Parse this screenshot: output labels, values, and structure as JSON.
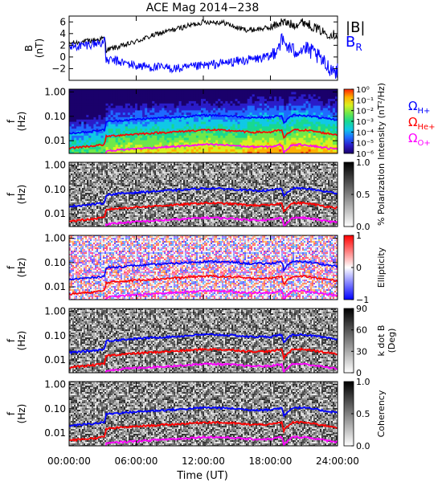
{
  "figure": {
    "title": "ACE Mag 2014−238",
    "xlabel": "Time (UT)",
    "x_ticks": [
      "00:00:00",
      "06:00:00",
      "12:00:00",
      "18:00:00",
      "24:00:00"
    ]
  },
  "chart_data": [
    {
      "type": "line",
      "panel": "magnetic-field",
      "ylabel": [
        "B",
        "(nT)"
      ],
      "ylim": [
        -4,
        7
      ],
      "y_ticks": [
        "6",
        "4",
        "2",
        "0",
        "−2"
      ],
      "x_range_hours": [
        0,
        24
      ],
      "series": [
        {
          "name": "|B|",
          "color": "#000000",
          "x": [
            0,
            2,
            3.2,
            3.3,
            5,
            8,
            10,
            12,
            13,
            14,
            15,
            16,
            18,
            19,
            20,
            21,
            22,
            23,
            24
          ],
          "values": [
            2.3,
            2.8,
            3.2,
            1.2,
            2.0,
            4.0,
            5.0,
            6.0,
            6.0,
            5.8,
            5.0,
            4.6,
            5.0,
            6.0,
            5.5,
            6.0,
            5.0,
            4.0,
            3.8
          ]
        },
        {
          "name": "B_R",
          "color": "#0000ff",
          "x": [
            0,
            2,
            3.2,
            3.3,
            4,
            6,
            8,
            10,
            12,
            14,
            16,
            18,
            19,
            20,
            21,
            22,
            23,
            24
          ],
          "values": [
            1.6,
            2.2,
            2.6,
            -0.6,
            -0.6,
            -1.5,
            -1.8,
            -2.0,
            -1.5,
            -1.0,
            -0.5,
            0.0,
            2.8,
            1.0,
            1.5,
            0.5,
            -1.5,
            -2.5
          ]
        }
      ]
    },
    {
      "type": "heatmap",
      "panel": "intensity",
      "ylabel": [
        "f",
        "(Hz)"
      ],
      "y_ticks": [
        "1.00",
        "0.10",
        "0.01"
      ],
      "colorbar_label": "Intensity (nT²/Hz)",
      "colorbar_ticks": [
        "10⁰",
        "10⁻¹",
        "10⁻²",
        "10⁻³",
        "10⁻⁴",
        "10⁻⁵",
        "10⁻⁶"
      ],
      "legend": [
        "ΩH+",
        "ΩHe+",
        "ΩO+"
      ],
      "legend_colors": [
        "#0000ff",
        "#ff0000",
        "#ff00ff"
      ]
    },
    {
      "type": "heatmap",
      "panel": "polarization",
      "ylabel": [
        "f",
        "(Hz)"
      ],
      "y_ticks": [
        "1.00",
        "0.10",
        "0.01"
      ],
      "colorbar_label": "% Polarization",
      "colorbar_ticks": [
        "1.0",
        "0.5",
        "0.0"
      ]
    },
    {
      "type": "heatmap",
      "panel": "ellipticity",
      "ylabel": [
        "f",
        "(Hz)"
      ],
      "y_ticks": [
        "1.00",
        "0.10",
        "0.01"
      ],
      "colorbar_label": "Ellipticity",
      "colorbar_ticks": [
        "1",
        "0",
        "−1"
      ]
    },
    {
      "type": "heatmap",
      "panel": "k-dot-b",
      "ylabel": [
        "f",
        "(Hz)"
      ],
      "y_ticks": [
        "1.00",
        "0.10",
        "0.01"
      ],
      "colorbar_label": [
        "k dot B",
        "(Deg)"
      ],
      "colorbar_ticks": [
        "90",
        "60",
        "30",
        "0"
      ]
    },
    {
      "type": "heatmap",
      "panel": "coherency",
      "ylabel": [
        "f",
        "(Hz)"
      ],
      "y_ticks": [
        "1.00",
        "0.10",
        "0.01"
      ],
      "colorbar_label": "Coherency",
      "colorbar_ticks": [
        "1.0",
        "0.5",
        "0.0"
      ]
    }
  ],
  "gyro_lines": {
    "x_hours": [
      0,
      2,
      3.2,
      3.3,
      5,
      8,
      10,
      12,
      13,
      15,
      16,
      18,
      18.5,
      19,
      19.2,
      20,
      21,
      22,
      23,
      24
    ],
    "he_ratio": 0.25,
    "o_ratio": 0.0625,
    "hplus_freq_hz": [
      0.02,
      0.024,
      0.028,
      0.06,
      0.07,
      0.085,
      0.095,
      0.11,
      0.11,
      0.1,
      0.09,
      0.09,
      0.1,
      0.11,
      0.05,
      0.11,
      0.11,
      0.095,
      0.08,
      0.07
    ],
    "colors": {
      "h": "#0000ff",
      "he": "#ff0000",
      "o": "#ff00ff"
    }
  }
}
